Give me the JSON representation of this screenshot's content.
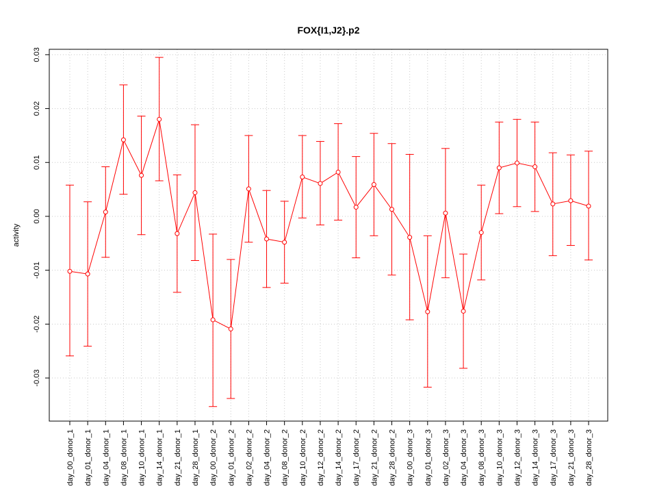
{
  "chart_data": {
    "type": "line",
    "title": "FOX{I1,J2}.p2",
    "xlabel": "",
    "ylabel": "activity",
    "ylim": [
      -0.038,
      0.031
    ],
    "yticks": [
      -0.03,
      -0.02,
      -0.01,
      0.0,
      0.01,
      0.02,
      0.03
    ],
    "ytick_labels": [
      "-0.03",
      "-0.02",
      "-0.01",
      "0.00",
      "0.01",
      "0.02",
      "0.03"
    ],
    "grid": true,
    "error_bars": true,
    "series_color": "#ff0000",
    "grid_color": "#c8c8c8",
    "categories": [
      "day_00_donor_1",
      "day_01_donor_1",
      "day_04_donor_1",
      "day_08_donor_1",
      "day_10_donor_1",
      "day_14_donor_1",
      "day_21_donor_1",
      "day_28_donor_1",
      "day_00_donor_2",
      "day_01_donor_2",
      "day_02_donor_2",
      "day_04_donor_2",
      "day_08_donor_2",
      "day_10_donor_2",
      "day_12_donor_2",
      "day_14_donor_2",
      "day_17_donor_2",
      "day_21_donor_2",
      "day_28_donor_2",
      "day_00_donor_3",
      "day_01_donor_3",
      "day_02_donor_3",
      "day_04_donor_3",
      "day_08_donor_3",
      "day_10_donor_3",
      "day_12_donor_3",
      "day_14_donor_3",
      "day_17_donor_3",
      "day_21_donor_3",
      "day_28_donor_3"
    ],
    "values": [
      -0.0102,
      -0.0107,
      0.0008,
      0.0142,
      0.0076,
      0.018,
      -0.0032,
      0.0044,
      -0.0192,
      -0.0209,
      0.0051,
      -0.0042,
      -0.0048,
      0.0073,
      0.0061,
      0.0082,
      0.0017,
      0.0059,
      0.0013,
      -0.0039,
      -0.0177,
      0.0006,
      -0.0176,
      -0.003,
      0.009,
      0.0099,
      0.0092,
      0.0023,
      0.0029,
      0.0019
    ],
    "upper": [
      0.0058,
      0.0027,
      0.0092,
      0.0244,
      0.0186,
      0.0295,
      0.0077,
      0.017,
      -0.0033,
      -0.008,
      0.015,
      0.0048,
      0.0028,
      0.015,
      0.0139,
      0.0172,
      0.0111,
      0.0154,
      0.0135,
      0.0115,
      -0.0036,
      0.0126,
      -0.007,
      0.0058,
      0.0175,
      0.018,
      0.0175,
      0.0118,
      0.0114,
      0.0121
    ],
    "lower": [
      -0.0259,
      -0.0241,
      -0.0076,
      0.0041,
      -0.0034,
      0.0066,
      -0.0141,
      -0.0082,
      -0.0353,
      -0.0338,
      -0.0048,
      -0.0132,
      -0.0124,
      -0.0003,
      -0.0016,
      -0.0007,
      -0.0077,
      -0.0036,
      -0.0109,
      -0.0192,
      -0.0317,
      -0.0114,
      -0.0282,
      -0.0118,
      0.0005,
      0.0018,
      0.0009,
      -0.0073,
      -0.0054,
      -0.0081
    ]
  }
}
